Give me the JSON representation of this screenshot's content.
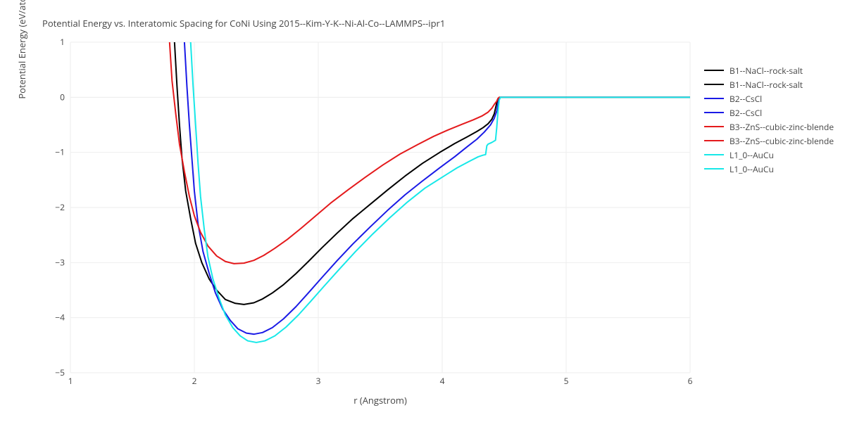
{
  "chart": {
    "type": "line",
    "title": "Potential Energy vs. Interatomic Spacing for CoNi Using 2015--Kim-Y-K--Ni-Al-Co--LAMMPS--ipr1",
    "xlabel": "r (Angstrom)",
    "ylabel": "Potential Energy (eV/atom)",
    "background_color": "#ffffff",
    "grid_color": "#eeeeee",
    "axis_color": "#444444",
    "tick_font_size": 12,
    "title_font_size": 13,
    "xlim": [
      1,
      6
    ],
    "ylim": [
      -5,
      1
    ],
    "xticks": [
      1,
      2,
      3,
      4,
      5,
      6
    ],
    "yticks": [
      -5,
      -4,
      -3,
      -2,
      -1,
      0,
      1
    ],
    "line_width": 2,
    "series": [
      {
        "name": "B1--NaCl--rock-salt",
        "color": "#000000",
        "points": [
          [
            1.84,
            1.0
          ],
          [
            1.86,
            0.2
          ],
          [
            1.88,
            -0.5
          ],
          [
            1.9,
            -1.1
          ],
          [
            1.93,
            -1.7
          ],
          [
            1.97,
            -2.2
          ],
          [
            2.01,
            -2.65
          ],
          [
            2.06,
            -3.0
          ],
          [
            2.12,
            -3.3
          ],
          [
            2.18,
            -3.5
          ],
          [
            2.25,
            -3.67
          ],
          [
            2.33,
            -3.74
          ],
          [
            2.4,
            -3.76
          ],
          [
            2.48,
            -3.73
          ],
          [
            2.55,
            -3.66
          ],
          [
            2.63,
            -3.55
          ],
          [
            2.72,
            -3.4
          ],
          [
            2.82,
            -3.2
          ],
          [
            2.92,
            -2.98
          ],
          [
            3.03,
            -2.73
          ],
          [
            3.15,
            -2.47
          ],
          [
            3.28,
            -2.2
          ],
          [
            3.42,
            -1.94
          ],
          [
            3.56,
            -1.68
          ],
          [
            3.7,
            -1.43
          ],
          [
            3.84,
            -1.2
          ],
          [
            3.98,
            -1.0
          ],
          [
            4.1,
            -0.84
          ],
          [
            4.2,
            -0.72
          ],
          [
            4.28,
            -0.62
          ],
          [
            4.33,
            -0.55
          ],
          [
            4.37,
            -0.48
          ],
          [
            4.4,
            -0.4
          ],
          [
            4.42,
            -0.3
          ],
          [
            4.43,
            -0.2
          ],
          [
            4.44,
            -0.1
          ],
          [
            4.45,
            -0.03
          ],
          [
            4.46,
            0.0
          ],
          [
            6.0,
            0.0
          ]
        ]
      },
      {
        "name": "B2--CsCl",
        "color": "#1a1ae6",
        "points": [
          [
            1.92,
            1.0
          ],
          [
            1.94,
            0.2
          ],
          [
            1.96,
            -0.5
          ],
          [
            1.98,
            -1.1
          ],
          [
            2.0,
            -1.7
          ],
          [
            2.03,
            -2.3
          ],
          [
            2.07,
            -2.8
          ],
          [
            2.12,
            -3.2
          ],
          [
            2.17,
            -3.55
          ],
          [
            2.23,
            -3.85
          ],
          [
            2.29,
            -4.05
          ],
          [
            2.35,
            -4.2
          ],
          [
            2.42,
            -4.28
          ],
          [
            2.48,
            -4.3
          ],
          [
            2.55,
            -4.27
          ],
          [
            2.63,
            -4.18
          ],
          [
            2.72,
            -4.02
          ],
          [
            2.82,
            -3.8
          ],
          [
            2.92,
            -3.55
          ],
          [
            3.03,
            -3.27
          ],
          [
            3.15,
            -2.97
          ],
          [
            3.28,
            -2.66
          ],
          [
            3.42,
            -2.35
          ],
          [
            3.56,
            -2.05
          ],
          [
            3.7,
            -1.77
          ],
          [
            3.84,
            -1.52
          ],
          [
            3.98,
            -1.28
          ],
          [
            4.1,
            -1.08
          ],
          [
            4.2,
            -0.9
          ],
          [
            4.28,
            -0.76
          ],
          [
            4.34,
            -0.63
          ],
          [
            4.39,
            -0.5
          ],
          [
            4.42,
            -0.38
          ],
          [
            4.44,
            -0.25
          ],
          [
            4.45,
            -0.12
          ],
          [
            4.46,
            -0.03
          ],
          [
            4.47,
            0.0
          ],
          [
            6.0,
            0.0
          ]
        ]
      },
      {
        "name": "B3--ZnS--cubic-zinc-blende",
        "color": "#e41a1c",
        "points": [
          [
            1.8,
            1.0
          ],
          [
            1.82,
            0.3
          ],
          [
            1.85,
            -0.3
          ],
          [
            1.88,
            -0.85
          ],
          [
            1.92,
            -1.35
          ],
          [
            1.96,
            -1.8
          ],
          [
            2.0,
            -2.15
          ],
          [
            2.05,
            -2.45
          ],
          [
            2.11,
            -2.7
          ],
          [
            2.18,
            -2.88
          ],
          [
            2.25,
            -2.98
          ],
          [
            2.32,
            -3.02
          ],
          [
            2.4,
            -3.01
          ],
          [
            2.48,
            -2.96
          ],
          [
            2.56,
            -2.87
          ],
          [
            2.65,
            -2.74
          ],
          [
            2.75,
            -2.58
          ],
          [
            2.86,
            -2.38
          ],
          [
            2.98,
            -2.15
          ],
          [
            3.1,
            -1.92
          ],
          [
            3.24,
            -1.68
          ],
          [
            3.38,
            -1.45
          ],
          [
            3.52,
            -1.23
          ],
          [
            3.66,
            -1.03
          ],
          [
            3.8,
            -0.86
          ],
          [
            3.93,
            -0.71
          ],
          [
            4.05,
            -0.59
          ],
          [
            4.16,
            -0.49
          ],
          [
            4.25,
            -0.41
          ],
          [
            4.32,
            -0.34
          ],
          [
            4.37,
            -0.27
          ],
          [
            4.4,
            -0.2
          ],
          [
            4.42,
            -0.13
          ],
          [
            4.44,
            -0.07
          ],
          [
            4.45,
            -0.02
          ],
          [
            4.46,
            0.0
          ],
          [
            6.0,
            0.0
          ]
        ]
      },
      {
        "name": "L1_0--AuCu",
        "color": "#17e8e8",
        "points": [
          [
            1.97,
            1.0
          ],
          [
            1.99,
            0.2
          ],
          [
            2.01,
            -0.5
          ],
          [
            2.03,
            -1.2
          ],
          [
            2.05,
            -1.8
          ],
          [
            2.08,
            -2.4
          ],
          [
            2.11,
            -2.9
          ],
          [
            2.15,
            -3.3
          ],
          [
            2.2,
            -3.65
          ],
          [
            2.25,
            -3.95
          ],
          [
            2.31,
            -4.18
          ],
          [
            2.37,
            -4.33
          ],
          [
            2.43,
            -4.42
          ],
          [
            2.5,
            -4.45
          ],
          [
            2.57,
            -4.42
          ],
          [
            2.65,
            -4.33
          ],
          [
            2.74,
            -4.17
          ],
          [
            2.84,
            -3.95
          ],
          [
            2.94,
            -3.7
          ],
          [
            3.05,
            -3.42
          ],
          [
            3.17,
            -3.12
          ],
          [
            3.3,
            -2.8
          ],
          [
            3.44,
            -2.48
          ],
          [
            3.58,
            -2.18
          ],
          [
            3.72,
            -1.9
          ],
          [
            3.86,
            -1.65
          ],
          [
            4.0,
            -1.45
          ],
          [
            4.12,
            -1.28
          ],
          [
            4.22,
            -1.16
          ],
          [
            4.29,
            -1.08
          ],
          [
            4.33,
            -1.05
          ],
          [
            4.35,
            -1.04
          ],
          [
            4.36,
            -0.88
          ],
          [
            4.37,
            -0.85
          ],
          [
            4.4,
            -0.82
          ],
          [
            4.43,
            -0.78
          ],
          [
            4.44,
            -0.55
          ],
          [
            4.45,
            -0.25
          ],
          [
            4.46,
            -0.05
          ],
          [
            4.47,
            0.0
          ],
          [
            6.0,
            0.0
          ]
        ]
      }
    ],
    "legend_labels": [
      "B1--NaCl--rock-salt",
      "B1--NaCl--rock-salt",
      "B2--CsCl",
      "B2--CsCl",
      "B3--ZnS--cubic-zinc-blende",
      "B3--ZnS--cubic-zinc-blende",
      "L1_0--AuCu",
      "L1_0--AuCu"
    ],
    "legend_colors": [
      "#000000",
      "#000000",
      "#1a1ae6",
      "#1a1ae6",
      "#e41a1c",
      "#e41a1c",
      "#17e8e8",
      "#17e8e8"
    ]
  }
}
